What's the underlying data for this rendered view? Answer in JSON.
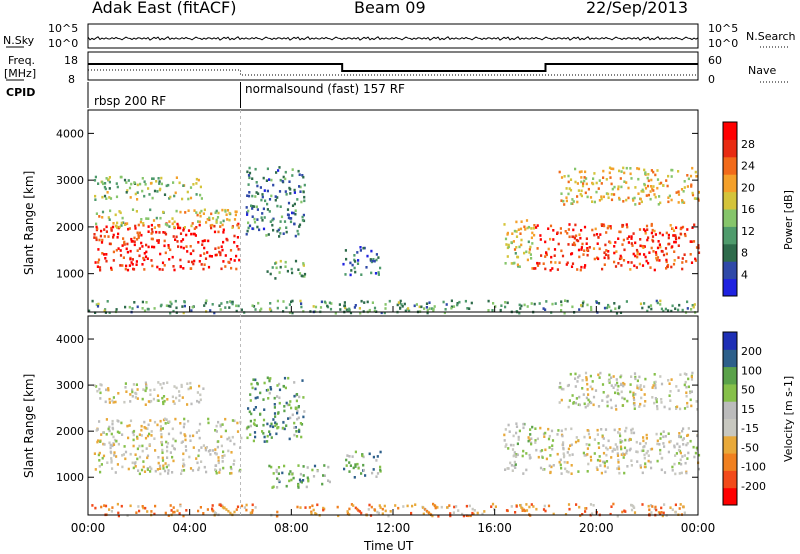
{
  "header": {
    "radar": "Adak East (fitACF)",
    "beam": "Beam 09",
    "date": "22/Sep/2013"
  },
  "top_panels": {
    "nsky_label": "N.Sky",
    "nsky_ticks": [
      "10^5",
      "10^0"
    ],
    "nsearch_label": "N.Search",
    "freq_label_line1": "Freq.",
    "freq_label_line2": "[MHz]",
    "freq_ticks": [
      "18",
      "8"
    ],
    "nave_ticks": [
      "60",
      "0"
    ],
    "nave_label": "Nave",
    "cpid_label": "CPID",
    "cpid_1": "rbsp 200 RF",
    "cpid_2": "normalsound (fast) 157 RF"
  },
  "colors": {
    "power": [
      "#1f22e0",
      "#2f49a8",
      "#2e6b4b",
      "#4f9b6c",
      "#86c56b",
      "#d4c43b",
      "#f4a02a",
      "#f16a1a",
      "#e82b12",
      "#ff0000"
    ],
    "velocity": [
      "#ff0000",
      "#f24a1a",
      "#f08020",
      "#e8a93a",
      "#c8c8c0",
      "#bcbcbc",
      "#86c04a",
      "#5aa24a",
      "#2d5f8a",
      "#1e2fb5"
    ]
  },
  "chart_data": [
    {
      "type": "heatmap",
      "name": "power-panel",
      "ylabel": "Slant Range [km]",
      "yticks": [
        "4000",
        "3000",
        "2000",
        "1000"
      ],
      "ylim": [
        180,
        4500
      ],
      "xlim": [
        0,
        24
      ],
      "colorbar_label": "Power [dB]",
      "colorbar_ticks": [
        "28",
        "24",
        "20",
        "16",
        "12",
        "8",
        "4"
      ],
      "regions": [
        {
          "x": [
            0.2,
            6.0
          ],
          "y": [
            1100,
            2100
          ],
          "level": 0.9
        },
        {
          "x": [
            0.2,
            6.0
          ],
          "y": [
            2000,
            2400
          ],
          "level": 0.55
        },
        {
          "x": [
            0.2,
            4.5
          ],
          "y": [
            2600,
            3100
          ],
          "level": 0.45
        },
        {
          "x": [
            6.2,
            8.5
          ],
          "y": [
            1800,
            3300
          ],
          "level": 0.25
        },
        {
          "x": [
            7.0,
            8.5
          ],
          "y": [
            900,
            1300
          ],
          "level": 0.35
        },
        {
          "x": [
            10.0,
            11.5
          ],
          "y": [
            1000,
            1600
          ],
          "level": 0.2
        },
        {
          "x": [
            16.3,
            17.5
          ],
          "y": [
            1100,
            2200
          ],
          "level": 0.55
        },
        {
          "x": [
            17.5,
            24.0
          ],
          "y": [
            1100,
            2100
          ],
          "level": 0.85
        },
        {
          "x": [
            18.5,
            24.0
          ],
          "y": [
            2500,
            3300
          ],
          "level": 0.6
        },
        {
          "x": [
            0.0,
            24.0
          ],
          "y": [
            180,
            450
          ],
          "level": 0.35
        }
      ]
    },
    {
      "type": "heatmap",
      "name": "velocity-panel",
      "ylabel": "Slant Range [km]",
      "yticks": [
        "4000",
        "3000",
        "2000",
        "1000"
      ],
      "ylim": [
        180,
        4500
      ],
      "xlim": [
        0,
        24
      ],
      "colorbar_label": "Velocity [m s-1]",
      "colorbar_ticks": [
        "200",
        "100",
        "50",
        "15",
        "-15",
        "-50",
        "-100",
        "-200"
      ],
      "regions": [
        {
          "x": [
            0.2,
            6.0
          ],
          "y": [
            1100,
            2300
          ],
          "level": 0.5
        },
        {
          "x": [
            0.2,
            4.5
          ],
          "y": [
            2600,
            3100
          ],
          "level": 0.5
        },
        {
          "x": [
            6.2,
            8.5
          ],
          "y": [
            1800,
            3200
          ],
          "level": 0.7
        },
        {
          "x": [
            7.0,
            9.5
          ],
          "y": [
            800,
            1300
          ],
          "level": 0.7
        },
        {
          "x": [
            10.0,
            11.5
          ],
          "y": [
            1000,
            1600
          ],
          "level": 0.7
        },
        {
          "x": [
            16.3,
            17.5
          ],
          "y": [
            1100,
            2200
          ],
          "level": 0.55
        },
        {
          "x": [
            17.5,
            24.0
          ],
          "y": [
            1100,
            2100
          ],
          "level": 0.5
        },
        {
          "x": [
            18.5,
            24.0
          ],
          "y": [
            2500,
            3300
          ],
          "level": 0.5
        },
        {
          "x": [
            0.0,
            24.0
          ],
          "y": [
            180,
            450
          ],
          "level": 0.3
        }
      ]
    }
  ],
  "xaxis": {
    "label": "Time UT",
    "ticks": [
      "00:00",
      "04:00",
      "08:00",
      "12:00",
      "16:00",
      "20:00",
      "00:00"
    ]
  }
}
